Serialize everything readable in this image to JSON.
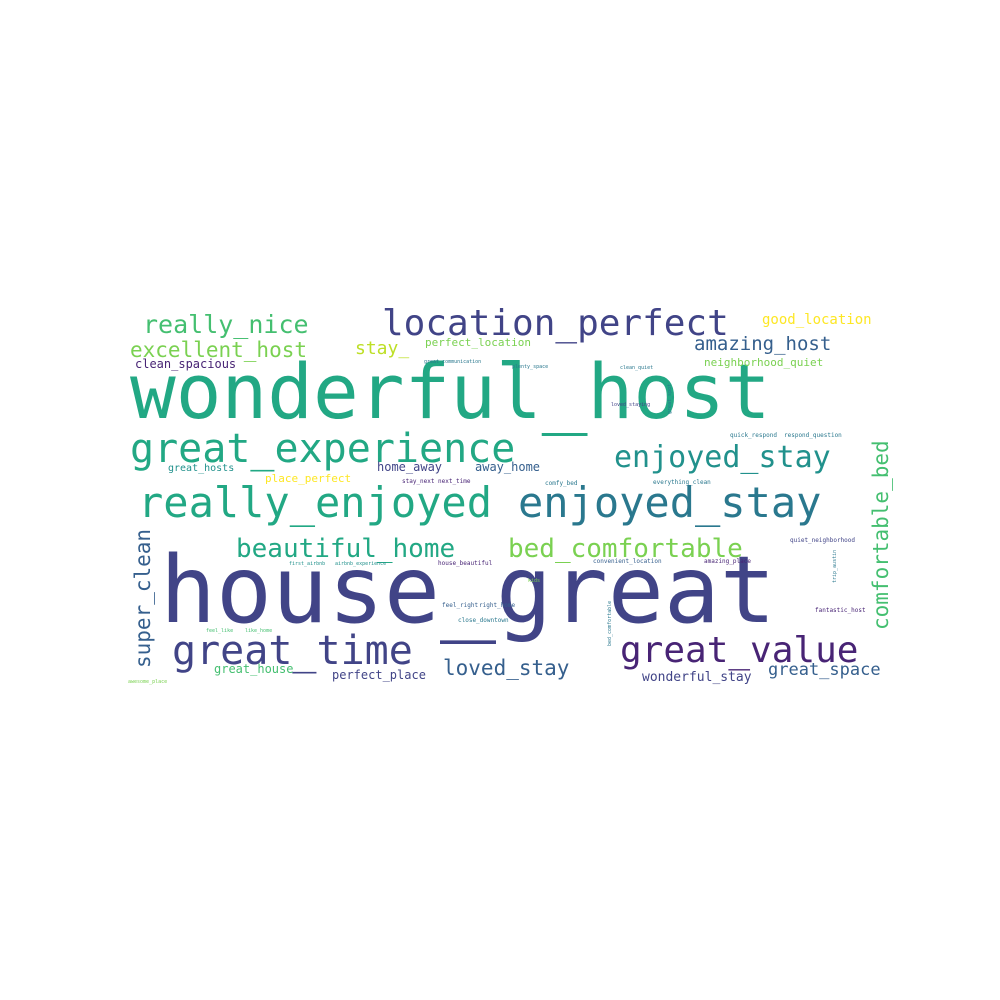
{
  "colors": {
    "background": "#ffffff",
    "palette": {
      "dark_purple": "#482475",
      "indigo": "#414487",
      "blue": "#355f8d",
      "teal": "#2a788e",
      "cyan": "#21918c",
      "green_teal": "#22a884",
      "green": "#44bf70",
      "light_green": "#7ad151",
      "lime": "#bddf26",
      "yellow": "#fde725"
    }
  },
  "words": [
    {
      "text": "house_great",
      "weight": 100,
      "color": "indigo"
    },
    {
      "text": "wonderful_host",
      "weight": 92,
      "color": "green_teal"
    },
    {
      "text": "really_enjoyed",
      "weight": 58,
      "color": "green_teal"
    },
    {
      "text": "enjoyed_stay",
      "weight": 58,
      "color": "teal"
    },
    {
      "text": "great_experience",
      "weight": 55,
      "color": "green_teal"
    },
    {
      "text": "great_time",
      "weight": 53,
      "color": "indigo"
    },
    {
      "text": "location_perfect",
      "weight": 52,
      "color": "indigo"
    },
    {
      "text": "great_value",
      "weight": 48,
      "color": "dark_purple"
    },
    {
      "text": "beautiful_home",
      "weight": 42,
      "color": "green_teal"
    },
    {
      "text": "bed_comfortable",
      "weight": 42,
      "color": "light_green"
    },
    {
      "text": "enjoyed_stay",
      "weight": 40,
      "color": "cyan"
    },
    {
      "text": "really_nice",
      "weight": 36,
      "color": "green"
    },
    {
      "text": "super_clean",
      "weight": 32,
      "color": "blue"
    },
    {
      "text": "comfortable_bed",
      "weight": 32,
      "color": "green"
    },
    {
      "text": "loved_stay",
      "weight": 30,
      "color": "blue"
    },
    {
      "text": "excellent_host",
      "weight": 30,
      "color": "light_green"
    },
    {
      "text": "amazing_host",
      "weight": 28,
      "color": "blue"
    },
    {
      "text": "stay_",
      "weight": 26,
      "color": "lime"
    },
    {
      "text": "good_location",
      "weight": 22,
      "color": "yellow"
    },
    {
      "text": "great_space",
      "weight": 24,
      "color": "blue"
    },
    {
      "text": "wonderful_stay",
      "weight": 20,
      "color": "indigo"
    },
    {
      "text": "home_away",
      "weight": 18,
      "color": "indigo"
    },
    {
      "text": "away_home",
      "weight": 18,
      "color": "blue"
    },
    {
      "text": "great_house",
      "weight": 18,
      "color": "green"
    },
    {
      "text": "perfect_place",
      "weight": 17,
      "color": "indigo"
    },
    {
      "text": "place_perfect",
      "weight": 16,
      "color": "yellow"
    },
    {
      "text": "neighborhood_quiet",
      "weight": 16,
      "color": "light_green"
    },
    {
      "text": "clean_spacious",
      "weight": 16,
      "color": "dark_purple"
    },
    {
      "text": "perfect_location",
      "weight": 15,
      "color": "light_green"
    },
    {
      "text": "great_hosts",
      "weight": 14,
      "color": "cyan"
    },
    {
      "text": "quick_respond",
      "weight": 8,
      "color": "teal"
    },
    {
      "text": "respond_question",
      "weight": 8,
      "color": "teal"
    },
    {
      "text": "quiet_neighborhood",
      "weight": 8,
      "color": "indigo"
    },
    {
      "text": "fantastic_host",
      "weight": 8,
      "color": "dark_purple"
    },
    {
      "text": "everything_clean",
      "weight": 7,
      "color": "teal"
    },
    {
      "text": "amazing_place",
      "weight": 7,
      "color": "dark_purple"
    },
    {
      "text": "convenient_location",
      "weight": 7,
      "color": "blue"
    },
    {
      "text": "stay_next",
      "weight": 7,
      "color": "dark_purple"
    },
    {
      "text": "next_time",
      "weight": 7,
      "color": "dark_purple"
    },
    {
      "text": "comfy_bed",
      "weight": 7,
      "color": "teal"
    },
    {
      "text": "house_beautiful",
      "weight": 7,
      "color": "dark_purple"
    },
    {
      "text": "feel_right",
      "weight": 7,
      "color": "blue"
    },
    {
      "text": "right_home",
      "weight": 7,
      "color": "blue"
    },
    {
      "text": "close_downtown",
      "weight": 7,
      "color": "teal"
    },
    {
      "text": "first_airbnb",
      "weight": 7,
      "color": "cyan"
    },
    {
      "text": "airbnb_experience",
      "weight": 7,
      "color": "cyan"
    },
    {
      "text": "feel_like",
      "weight": 6,
      "color": "green"
    },
    {
      "text": "like_home",
      "weight": 6,
      "color": "green"
    },
    {
      "text": "great_communication",
      "weight": 6,
      "color": "teal"
    },
    {
      "text": "plenty_space",
      "weight": 6,
      "color": "teal"
    },
    {
      "text": "clean_quiet",
      "weight": 6,
      "color": "teal"
    },
    {
      "text": "loved_staying",
      "weight": 6,
      "color": "indigo"
    },
    {
      "text": "great_spot",
      "weight": 6,
      "color": "teal"
    },
    {
      "text": "bed_comfortable",
      "weight": 6,
      "color": "teal"
    },
    {
      "text": "trip_austin",
      "weight": 6,
      "color": "teal"
    },
    {
      "text": "kids",
      "weight": 5,
      "color": "light_green"
    },
    {
      "text": "awesome_place",
      "weight": 5,
      "color": "light_green"
    }
  ]
}
